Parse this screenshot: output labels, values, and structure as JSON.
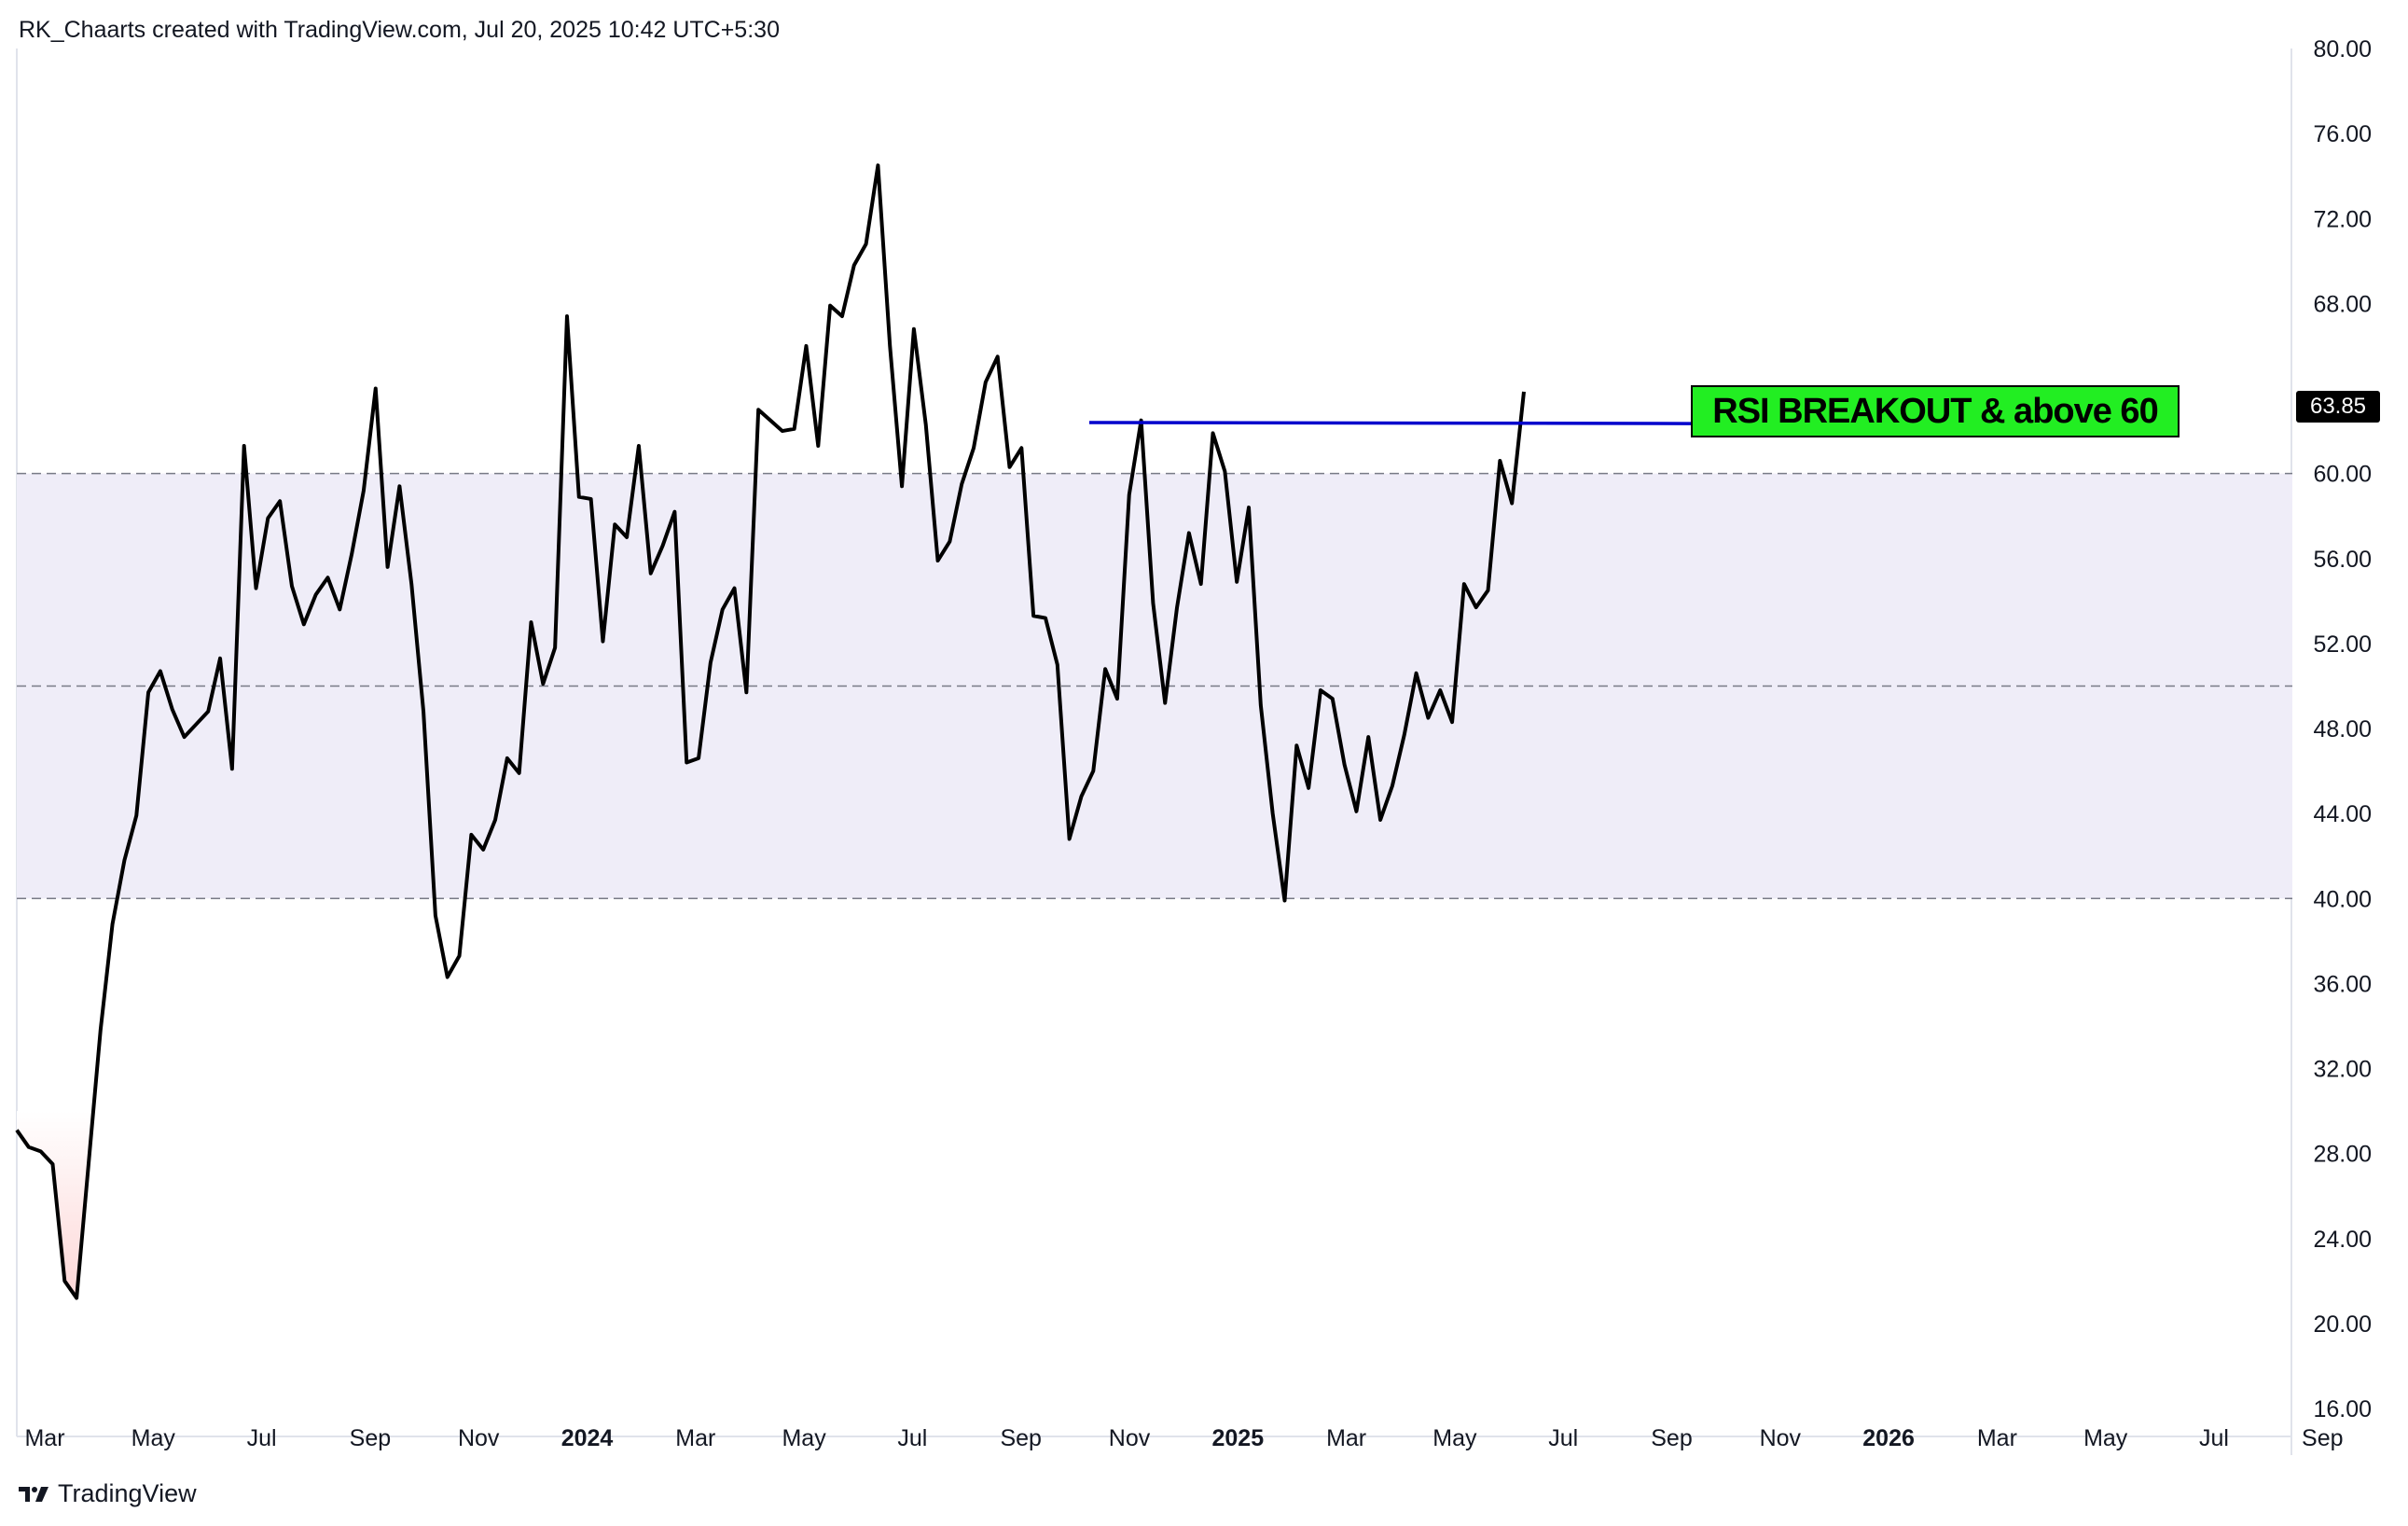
{
  "header": {
    "attribution": "RK_Chaarts created with TradingView.com, Jul 20, 2025 10:42 UTC+5:30"
  },
  "footer": {
    "brand": "TradingView"
  },
  "annotation": {
    "text": "RSI BREAKOUT & above 60"
  },
  "price_badge": {
    "value": "63.85"
  },
  "colors": {
    "line": "#000000",
    "breakout_line": "#0000cc",
    "band_fill": "#efedf8",
    "annotation_bg": "#22ee22",
    "oversold_fill": "#fdd7d7",
    "grid_dashed": "#787b86"
  },
  "chart_data": {
    "type": "line",
    "title": "",
    "xlabel": "",
    "ylabel": "",
    "ylim": [
      16,
      80
    ],
    "y_ticks": [
      "80.00",
      "76.00",
      "72.00",
      "68.00",
      "64.00",
      "60.00",
      "56.00",
      "52.00",
      "48.00",
      "44.00",
      "40.00",
      "36.00",
      "32.00",
      "28.00",
      "24.00",
      "20.00",
      "16.00"
    ],
    "x_tick_labels": [
      "Mar",
      "May",
      "Jul",
      "Sep",
      "Nov",
      "2024",
      "Mar",
      "May",
      "Jul",
      "Sep",
      "Nov",
      "2025",
      "Mar",
      "May",
      "Jul",
      "Sep",
      "Nov",
      "2026",
      "Mar",
      "May",
      "Jul",
      "Sep"
    ],
    "x_tick_bold": [
      false,
      false,
      false,
      false,
      false,
      true,
      false,
      false,
      false,
      false,
      false,
      true,
      false,
      false,
      false,
      false,
      false,
      true,
      false,
      false,
      false,
      false
    ],
    "reference_lines": [
      60,
      50,
      40
    ],
    "band": [
      40,
      60
    ],
    "series": [
      {
        "values": [
          29.1,
          28.3,
          28.1,
          27.5,
          22,
          21.2,
          27.5,
          33.8,
          38.8,
          41.8,
          43.9,
          49.7,
          50.7,
          48.9,
          47.6,
          48.2,
          48.8,
          51.3,
          46.1,
          61.3,
          54.6,
          57.9,
          58.7,
          54.7,
          52.9,
          54.3,
          55.1,
          53.6,
          56.2,
          59.2,
          64,
          55.6,
          59.4,
          54.8,
          48.8,
          39.2,
          36.3,
          37.3,
          43,
          42.3,
          43.7,
          46.6,
          45.9,
          53,
          50.1,
          51.8,
          67.4,
          58.9,
          58.8,
          52.1,
          57.6,
          57,
          61.3,
          55.3,
          56.6,
          58.2,
          46.4,
          46.6,
          51.1,
          53.6,
          54.6,
          49.7,
          63,
          62.5,
          62,
          62.1,
          66,
          61.3,
          67.9,
          67.4,
          69.8,
          70.8,
          74.5,
          66,
          59.4,
          66.8,
          62.3,
          55.9,
          56.8,
          59.5,
          61.2,
          64.3,
          65.5,
          60.3,
          61.2,
          53.3,
          53.2,
          51,
          42.8,
          44.8,
          46,
          50.8,
          49.4,
          59,
          62.5,
          53.9,
          49.2,
          53.7,
          57.2,
          54.8,
          61.9,
          60.1,
          54.9,
          58.4,
          49.1,
          44,
          39.9,
          47.2,
          45.2,
          49.8,
          49.4,
          46.3,
          44.1,
          47.6,
          43.7,
          45.3,
          47.7,
          50.6,
          48.5,
          49.8,
          48.3,
          54.8,
          53.7,
          54.5,
          60.6,
          58.6,
          63.85
        ]
      }
    ],
    "breakout_line": {
      "from_value": 62.4,
      "to_value": 62.35
    }
  }
}
